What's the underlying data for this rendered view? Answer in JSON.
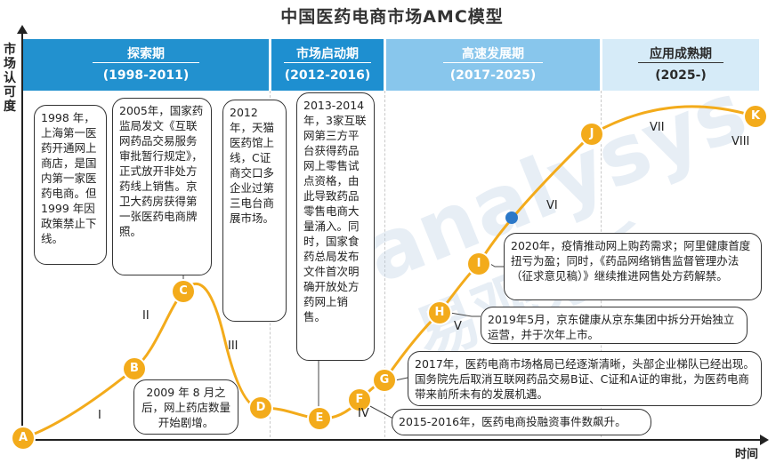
{
  "title": "中国医药电商市场AMC模型",
  "axes": {
    "y_label": "市场认可度",
    "x_label": "时间"
  },
  "phases": [
    {
      "name": "探索期",
      "years": "(1998-2011)"
    },
    {
      "name": "市场启动期",
      "years": "(2012-2016)"
    },
    {
      "name": "高速发展期",
      "years": "(2017-2025)"
    },
    {
      "name": "应用成熟期",
      "years": "(2025-)"
    }
  ],
  "points": [
    "A",
    "B",
    "C",
    "D",
    "E",
    "F",
    "G",
    "H",
    "I",
    "J",
    "K"
  ],
  "roman_numerals": [
    "I",
    "II",
    "III",
    "IV",
    "V",
    "VI",
    "VII",
    "VIII"
  ],
  "notes": [
    "1998 年，上海第一医药开通网上商店，是国内第一家医药电商。但 1999 年因政策禁止下线。",
    "2005年，国家药监局发文《互联网药品交易服务审批暂行规定》，正式放开非处方药线上销售。京卫大药房获得第一张医药电商牌照。",
    "2009 年 8 月之后，网上药店数量开始剧增。",
    "2012年，天猫医药馆上线，C证商交口多企业过第三电台商展市场。",
    "2013-2014年，3家互联网第三方平台获得药品网上零售试点资格，由此导致药品零售电商大量涌入。同时，国家食药总局发布文件首次明确开放处方药网上销售。",
    "2015-2016年，医药电商投融资事件数飙升。",
    "2017年，医药电商市场格局已经逐渐清晰，头部企业梯队已经出现。国务院先后取消互联网药品交易B证、C证和A证的审批，为医药电商带来前所未有的发展机遇。",
    "2019年5月，京东健康从京东集团中拆分开始独立运营，并于次年上市。",
    "2020年，疫情推动网上购药需求；阿里健康首度扭亏为盈；同时，《药品网络销售监督管理办法（征求意见稿）》继续推进网售处方药解禁。"
  ],
  "watermark": {
    "latin": "analysys",
    "chinese": "易观分析"
  },
  "colors": {
    "curve": "#f3ab1b",
    "marker": "#f3ab1b",
    "blue_dot": "#2b78c8",
    "phase1": "#2291cf",
    "phase2": "#1e8fd0",
    "phase3": "#88c6ec",
    "phase4": "#d6ebf8"
  }
}
